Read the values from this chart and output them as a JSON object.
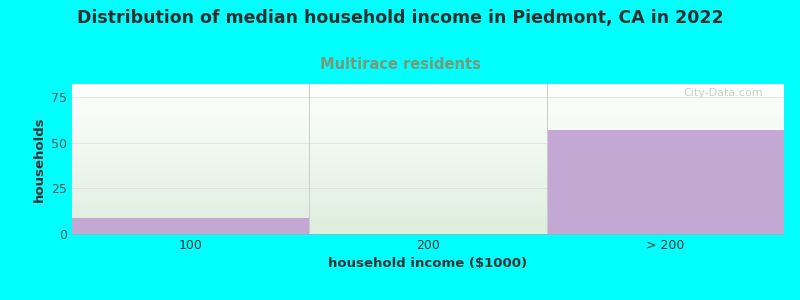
{
  "title": "Distribution of median household income in Piedmont, CA in 2022",
  "subtitle": "Multirace residents",
  "xlabel": "household income ($1000)",
  "ylabel": "households",
  "background_color": "#00FFFF",
  "categories": [
    "100",
    "200",
    "> 200"
  ],
  "bar_values": [
    9,
    0,
    57
  ],
  "bar_color": "#C4A8D4",
  "grad_top_color": "#FFFFFF",
  "grad_bottom_color": "#DDEEDD",
  "ylim": [
    0,
    82
  ],
  "yticks": [
    0,
    25,
    50,
    75
  ],
  "title_color": "#2E2E2E",
  "subtitle_color": "#779977",
  "title_fontsize": 12.5,
  "subtitle_fontsize": 10.5,
  "label_fontsize": 9.5,
  "tick_fontsize": 9,
  "watermark": "City-Data.com",
  "watermark_color": "#BBCCBB",
  "grid_color": "#DDDDDD",
  "separator_color": "#CCCCCC"
}
